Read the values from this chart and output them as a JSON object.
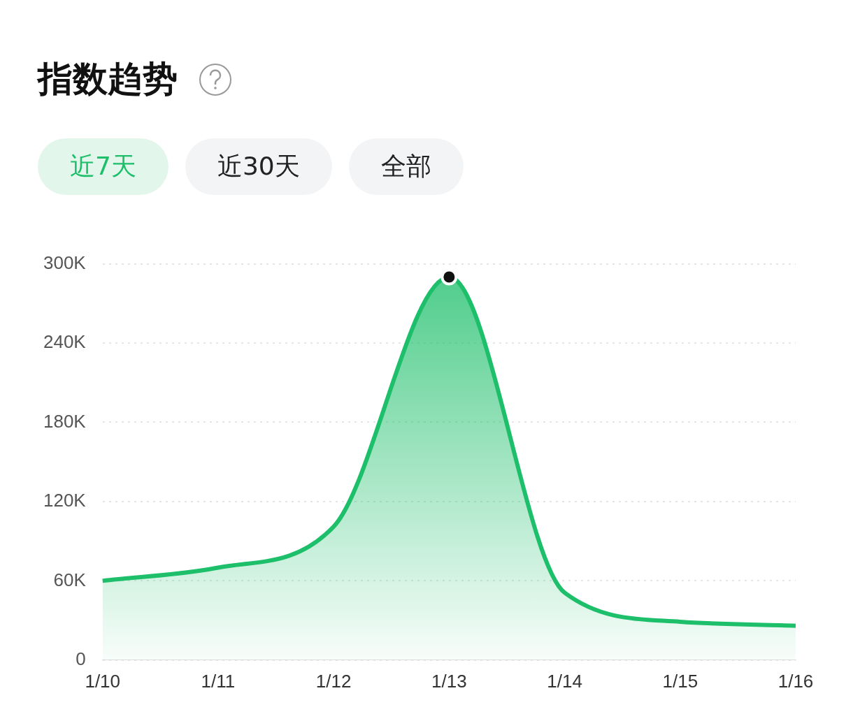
{
  "chart_data": {
    "type": "area",
    "title": "指数趋势",
    "annotations": [
      "近7天",
      "近30天",
      "全部"
    ],
    "categories": [
      "1/10",
      "1/11",
      "1/12",
      "1/13",
      "1/14",
      "1/15",
      "1/16"
    ],
    "series": [
      {
        "color": "#1dbf6a",
        "values": [
          60000,
          70000,
          101000,
          290000,
          51000,
          29000,
          26000
        ]
      },
      {
        "type": "scatter",
        "color": "#111111",
        "x": [
          "1/13"
        ],
        "values": [
          290000
        ]
      }
    ],
    "ylim": [
      0,
      300000
    ],
    "yticks": [
      {
        "value": 0,
        "label": "0"
      },
      {
        "value": 60000,
        "label": "60K"
      },
      {
        "value": 120000,
        "label": "120K"
      },
      {
        "value": 180000,
        "label": "180K"
      },
      {
        "value": 240000,
        "label": "240K"
      },
      {
        "value": 300000,
        "label": "300K"
      }
    ],
    "grid": "y",
    "legend": false
  }
}
